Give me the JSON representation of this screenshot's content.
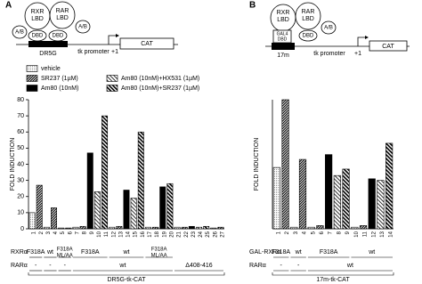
{
  "panel_labels": [
    "A",
    "B"
  ],
  "diagrams": [
    {
      "rxr_lbd": [
        "RXR",
        "LBD"
      ],
      "rar_lbd": [
        "RAR",
        "LBD"
      ],
      "ab": [
        "A/B",
        "A/B"
      ],
      "dbd": [
        "DBD",
        "DBD"
      ],
      "element": "DR5G",
      "promoter": "tk promoter",
      "start": "+1",
      "reporter": "CAT"
    },
    {
      "rxr_lbd": [
        "RXR",
        "LBD"
      ],
      "rar_lbd": [
        "RAR",
        "LBD"
      ],
      "ab": [
        "A/B"
      ],
      "dbd": [
        "DBD"
      ],
      "gal4": [
        "GAL4",
        "DBD"
      ],
      "element": "17m",
      "promoter": "tk promoter",
      "start": "+1",
      "reporter": "CAT"
    }
  ],
  "chart_data": [
    {
      "type": "bar",
      "ylabel": "FOLD INDUCTION",
      "ylim": [
        0,
        80
      ],
      "yticks": [
        0,
        10,
        20,
        30,
        40,
        50,
        60,
        70,
        80
      ],
      "categories": [
        "1",
        "2",
        "3",
        "4",
        "5",
        "6",
        "7",
        "8",
        "9",
        "10",
        "11",
        "12",
        "13",
        "14",
        "15",
        "16",
        "17",
        "18",
        "19",
        "20",
        "21",
        "22",
        "23",
        "24",
        "25",
        "26",
        "27"
      ],
      "series": [
        {
          "name": "vehicle",
          "color": "#000",
          "pattern": "dots",
          "values": [
            10,
            null,
            1,
            null,
            0.5,
            null,
            1,
            null,
            null,
            null,
            null,
            1,
            null,
            null,
            null,
            null,
            1,
            null,
            null,
            null,
            1,
            null,
            null,
            null,
            null,
            0.5,
            null
          ]
        },
        {
          "name": "SR237 (1µM)",
          "color": "#000",
          "pattern": "dense-hatch",
          "values": [
            null,
            27,
            null,
            13,
            null,
            0.5,
            null,
            1.5,
            null,
            null,
            null,
            null,
            1.5,
            null,
            null,
            null,
            null,
            1,
            null,
            null,
            null,
            1,
            null,
            null,
            null,
            null,
            1
          ]
        },
        {
          "name": "Am80 (10nM)",
          "color": "#000",
          "pattern": "solid",
          "values": [
            null,
            null,
            null,
            null,
            null,
            null,
            null,
            null,
            47,
            null,
            null,
            null,
            null,
            24,
            null,
            null,
            null,
            null,
            26,
            null,
            null,
            null,
            1.5,
            null,
            null,
            null,
            null
          ]
        },
        {
          "name": "Am80 (10nM)+HX531 (1µM)",
          "color": "#000",
          "pattern": "hatch",
          "values": [
            null,
            null,
            null,
            null,
            null,
            null,
            null,
            null,
            null,
            23,
            null,
            null,
            null,
            null,
            19,
            null,
            null,
            null,
            null,
            null,
            null,
            null,
            null,
            1,
            null,
            null,
            null
          ]
        },
        {
          "name": "Am80 (10nM)+SR237 (1µM)",
          "color": "#000",
          "pattern": "thick-hatch",
          "values": [
            null,
            null,
            null,
            null,
            null,
            null,
            null,
            null,
            null,
            null,
            70,
            null,
            null,
            null,
            null,
            60,
            null,
            null,
            null,
            28,
            null,
            null,
            null,
            null,
            1.5,
            null,
            null
          ]
        }
      ],
      "rows": [
        {
          "label": "RXRα",
          "groups": [
            "F318A",
            "wt",
            [
              "F318A",
              "ML/AA"
            ],
            "F318A",
            "wt",
            [
              "F318A",
              "ML/AA"
            ]
          ]
        },
        {
          "label": "RARα",
          "groups": [
            "-",
            "-",
            "-",
            "wt",
            "Δ408-416"
          ]
        }
      ],
      "construct": "DR5G-tk-CAT"
    },
    {
      "type": "bar",
      "ylabel": "FOLD INDUCTION",
      "ylim": [
        0,
        80
      ],
      "categories": [
        "1",
        "2",
        "3",
        "4",
        "5",
        "6",
        "7",
        "8",
        "9",
        "10",
        "11",
        "12",
        "13",
        "14"
      ],
      "series": [
        {
          "color": "#000",
          "pattern": "dots",
          "values": [
            38,
            null,
            1,
            null,
            1,
            null,
            null,
            null,
            null,
            1,
            null,
            null,
            null,
            null
          ]
        },
        {
          "color": "#000",
          "pattern": "dense-hatch",
          "values": [
            null,
            80,
            null,
            43,
            null,
            2,
            null,
            null,
            null,
            null,
            2,
            null,
            null,
            null
          ]
        },
        {
          "color": "#000",
          "pattern": "solid",
          "values": [
            null,
            null,
            null,
            null,
            null,
            null,
            46,
            null,
            null,
            null,
            null,
            31,
            null,
            null
          ]
        },
        {
          "color": "#000",
          "pattern": "hatch",
          "values": [
            null,
            null,
            null,
            null,
            null,
            null,
            null,
            33,
            null,
            null,
            null,
            null,
            30,
            null
          ]
        },
        {
          "color": "#000",
          "pattern": "thick-hatch",
          "values": [
            null,
            null,
            null,
            null,
            null,
            null,
            null,
            null,
            37,
            null,
            null,
            null,
            null,
            53
          ]
        }
      ],
      "rows": [
        {
          "label": "GAL-RXRα",
          "groups": [
            "F318A",
            "wt",
            "F318A",
            "wt"
          ]
        },
        {
          "label": "RARα",
          "groups": [
            "-",
            "-",
            "wt"
          ]
        }
      ],
      "construct": "17m-tk-CAT"
    }
  ]
}
